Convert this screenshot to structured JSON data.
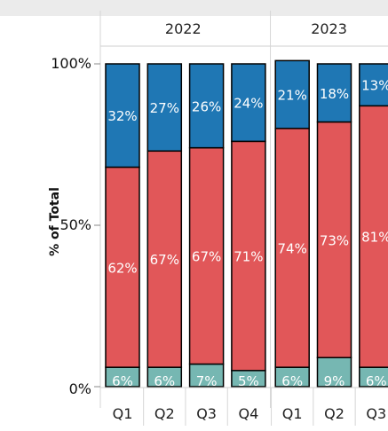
{
  "chart_data": {
    "type": "bar",
    "stacked": true,
    "normalized": true,
    "ylabel": "% of Total",
    "yticks": [
      "100%",
      "50%",
      "0%"
    ],
    "ylim": [
      0,
      100
    ],
    "groups": [
      {
        "label": "2022",
        "categories": [
          "Q1",
          "Q2",
          "Q3",
          "Q4"
        ]
      },
      {
        "label": "2023",
        "categories": [
          "Q1",
          "Q2",
          "Q3"
        ]
      }
    ],
    "series": [
      {
        "color": "#76b7b2",
        "values": [
          6,
          6,
          7,
          5,
          6,
          9,
          6
        ],
        "labels": [
          "6%",
          "6%",
          "7%",
          "5%",
          "6%",
          "9%",
          "6%"
        ]
      },
      {
        "color": "#e15759",
        "values": [
          62,
          67,
          67,
          71,
          74,
          73,
          81
        ],
        "labels": [
          "62%",
          "67%",
          "67%",
          "71%",
          "74%",
          "73%",
          "81%"
        ]
      },
      {
        "color": "#1f77b4",
        "values": [
          32,
          27,
          26,
          24,
          21,
          18,
          13
        ],
        "labels": [
          "32%",
          "27%",
          "26%",
          "24%",
          "21%",
          "18%",
          "13%"
        ]
      }
    ],
    "grid": false,
    "legend": "none"
  }
}
